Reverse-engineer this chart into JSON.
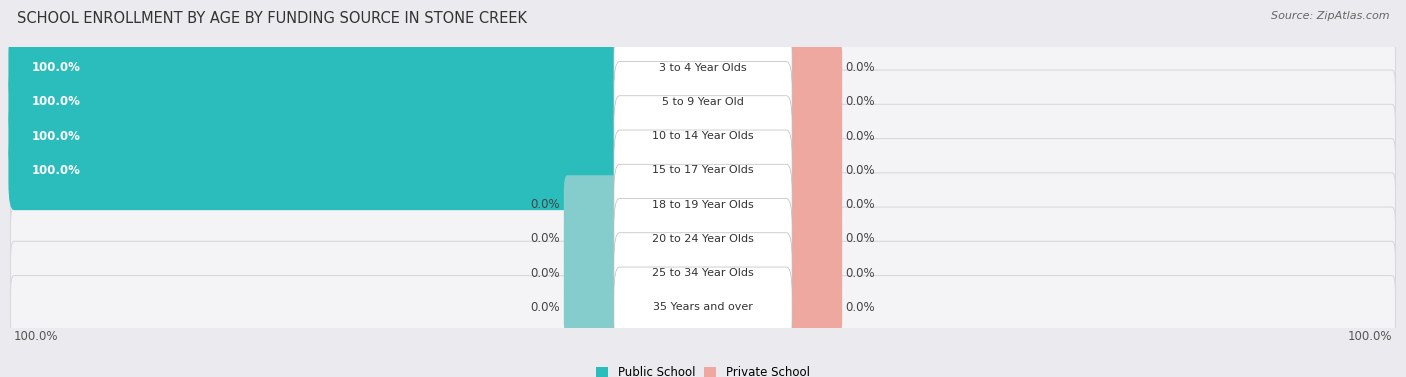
{
  "title": "SCHOOL ENROLLMENT BY AGE BY FUNDING SOURCE IN STONE CREEK",
  "source": "Source: ZipAtlas.com",
  "categories": [
    "3 to 4 Year Olds",
    "5 to 9 Year Old",
    "10 to 14 Year Olds",
    "15 to 17 Year Olds",
    "18 to 19 Year Olds",
    "20 to 24 Year Olds",
    "25 to 34 Year Olds",
    "35 Years and over"
  ],
  "public_values": [
    100.0,
    100.0,
    100.0,
    100.0,
    0.0,
    0.0,
    0.0,
    0.0
  ],
  "private_values": [
    0.0,
    0.0,
    0.0,
    0.0,
    0.0,
    0.0,
    0.0,
    0.0
  ],
  "public_color": "#2BBCBC",
  "public_stub_color": "#85CDCC",
  "private_color": "#EFA8A0",
  "private_stub_color": "#EFA8A0",
  "bg_color": "#ebebef",
  "row_bg_color": "#f4f4f7",
  "row_border_color": "#d8d8de",
  "title_fontsize": 10.5,
  "source_fontsize": 8,
  "label_fontsize": 8.5,
  "cat_fontsize": 8,
  "axis_label_left": "100.0%",
  "axis_label_right": "100.0%"
}
